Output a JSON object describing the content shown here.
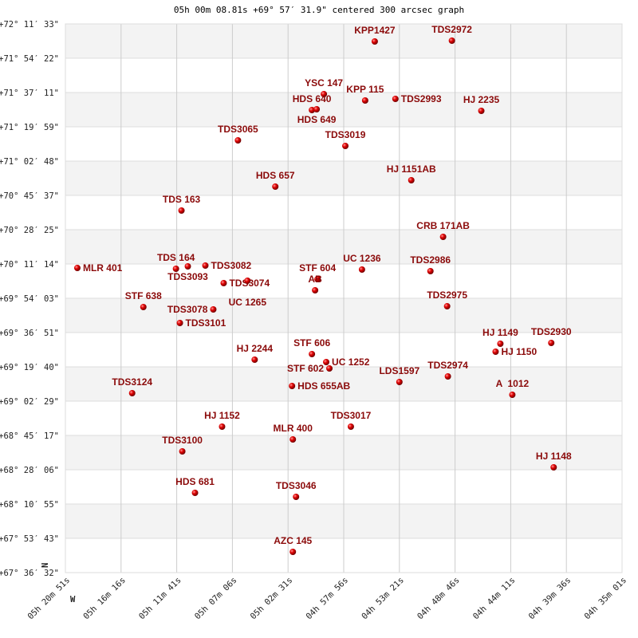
{
  "title": "05h 00m 08.81s +69° 57′ 31.9\" centered 300 arcsec graph",
  "chart_data": {
    "type": "scatter",
    "title": "05h 00m 08.81s +69° 57′ 31.9\" centered 300 arcsec graph",
    "x_unit": "RA (hours)",
    "y_unit": "Dec (degrees)",
    "xlim": [
      5.3475,
      4.611389
    ],
    "ylim": [
      67.608889,
      72.1925
    ],
    "grid": true,
    "direction_labels": {
      "west": "W",
      "north": "N"
    },
    "x_ticks": [
      "05h 20m 51s",
      "05h 16m 16s",
      "05h 11m 41s",
      "05h 07m 06s",
      "05h 02m 31s",
      "04h 57m 56s",
      "04h 53m 21s",
      "04h 48m 46s",
      "04h 44m 11s",
      "04h 39m 36s",
      "04h 35m 01s"
    ],
    "y_ticks": [
      "+72° 11′ 33\"",
      "+71° 54′ 22\"",
      "+71° 37′ 11\"",
      "+71° 19′ 59\"",
      "+71° 02′ 48\"",
      "+70° 45′ 37\"",
      "+70° 28′ 25\"",
      "+70° 11′ 14\"",
      "+69° 54′ 03\"",
      "+69° 36′ 51\"",
      "+69° 19′ 40\"",
      "+69° 02′ 29\"",
      "+68° 45′ 17\"",
      "+68° 28′ 06\"",
      "+68° 10′ 55\"",
      "+67° 53′ 43\"",
      "+67° 36′ 32\""
    ],
    "colors": {
      "point": "#dd0000",
      "label": "#8b0a0a",
      "stripe": "#f3f3f3",
      "grid": "#cccccc"
    },
    "points": [
      {
        "name": "KPP1427",
        "ra": 4.9384,
        "dec": 72.0459
      },
      {
        "name": "TDS2972",
        "ra": 4.8364,
        "dec": 72.0526
      },
      {
        "name": "YSC 147",
        "ra": 5.0057,
        "dec": 71.6062
      },
      {
        "name": "HDS 640",
        "ra": 5.0215,
        "dec": 71.473
      },
      {
        "name": "HDS 649",
        "ra": 5.0152,
        "dec": 71.4796
      },
      {
        "name": "KPP 115",
        "ra": 4.9511,
        "dec": 71.5529
      },
      {
        "name": "TDS2993",
        "ra": 4.9111,
        "dec": 71.5663
      },
      {
        "name": "HJ 2235",
        "ra": 4.7975,
        "dec": 71.4663
      },
      {
        "name": "TDS3065",
        "ra": 5.1193,
        "dec": 71.2198
      },
      {
        "name": "TDS3019",
        "ra": 4.9773,
        "dec": 71.1732
      },
      {
        "name": "HJ 1151AB",
        "ra": 4.8901,
        "dec": 70.8867
      },
      {
        "name": "HDS 657",
        "ra": 5.0699,
        "dec": 70.8334
      },
      {
        "name": "TDS 163",
        "ra": 5.194,
        "dec": 70.6336
      },
      {
        "name": "CRB 171AB",
        "ra": 4.848,
        "dec": 70.4137
      },
      {
        "name": "MLR 401",
        "ra": 5.3317,
        "dec": 70.1539
      },
      {
        "name": "TDS 164",
        "ra": 5.2013,
        "dec": 70.1472
      },
      {
        "name": "TDS3093",
        "ra": 5.1856,
        "dec": 70.1672
      },
      {
        "name": "TDS3082",
        "ra": 5.1624,
        "dec": 70.1739
      },
      {
        "name": "TDS3074",
        "ra": 5.1382,
        "dec": 70.0273
      },
      {
        "name": "UC 1265",
        "ra": 5.1067,
        "dec": 70.0473
      },
      {
        "name": "STF 604",
        "ra": 5.0141,
        "dec": 70.0606
      },
      {
        "name": "AB",
        "ra": 5.0173,
        "dec": 69.9673
      },
      {
        "name": "UC 1236",
        "ra": 4.9553,
        "dec": 70.1405
      },
      {
        "name": "TDS2986",
        "ra": 4.8648,
        "dec": 70.1272
      },
      {
        "name": "STF 638",
        "ra": 5.2444,
        "dec": 69.8274
      },
      {
        "name": "TDS3078",
        "ra": 5.1519,
        "dec": 69.8074
      },
      {
        "name": "TDS3101",
        "ra": 5.1961,
        "dec": 69.6942
      },
      {
        "name": "TDS2975",
        "ra": 4.8427,
        "dec": 69.8341
      },
      {
        "name": "HJ 1149",
        "ra": 4.7723,
        "dec": 69.521
      },
      {
        "name": "HJ 1150",
        "ra": 4.7786,
        "dec": 69.4543
      },
      {
        "name": "TDS2930",
        "ra": 4.705,
        "dec": 69.5276
      },
      {
        "name": "HJ 2244",
        "ra": 5.0972,
        "dec": 69.3877
      },
      {
        "name": "STF 606",
        "ra": 5.0215,
        "dec": 69.4344
      },
      {
        "name": "UC 1252",
        "ra": 5.0026,
        "dec": 69.3677
      },
      {
        "name": "STF 602",
        "ra": 4.9984,
        "dec": 69.3144
      },
      {
        "name": "HDS 655AB",
        "ra": 5.0478,
        "dec": 69.1679
      },
      {
        "name": "LDS1597",
        "ra": 4.9058,
        "dec": 69.2012
      },
      {
        "name": "TDS2974",
        "ra": 4.8417,
        "dec": 69.2478
      },
      {
        "name": "TDS3124",
        "ra": 5.2592,
        "dec": 69.1079
      },
      {
        "name": "A  1012",
        "ra": 4.7565,
        "dec": 69.0946
      },
      {
        "name": "HJ 1152",
        "ra": 5.1403,
        "dec": 68.8281
      },
      {
        "name": "TDS3017",
        "ra": 4.97,
        "dec": 68.8281
      },
      {
        "name": "MLR 400",
        "ra": 5.0467,
        "dec": 68.7215
      },
      {
        "name": "TDS3100",
        "ra": 5.1929,
        "dec": 68.6216
      },
      {
        "name": "HJ 1148",
        "ra": 4.7018,
        "dec": 68.4883
      },
      {
        "name": "HDS 681",
        "ra": 5.1761,
        "dec": 68.2751
      },
      {
        "name": "TDS3046",
        "ra": 5.0425,
        "dec": 68.2418
      },
      {
        "name": "AZC 145",
        "ra": 5.0467,
        "dec": 67.7821
      }
    ]
  }
}
